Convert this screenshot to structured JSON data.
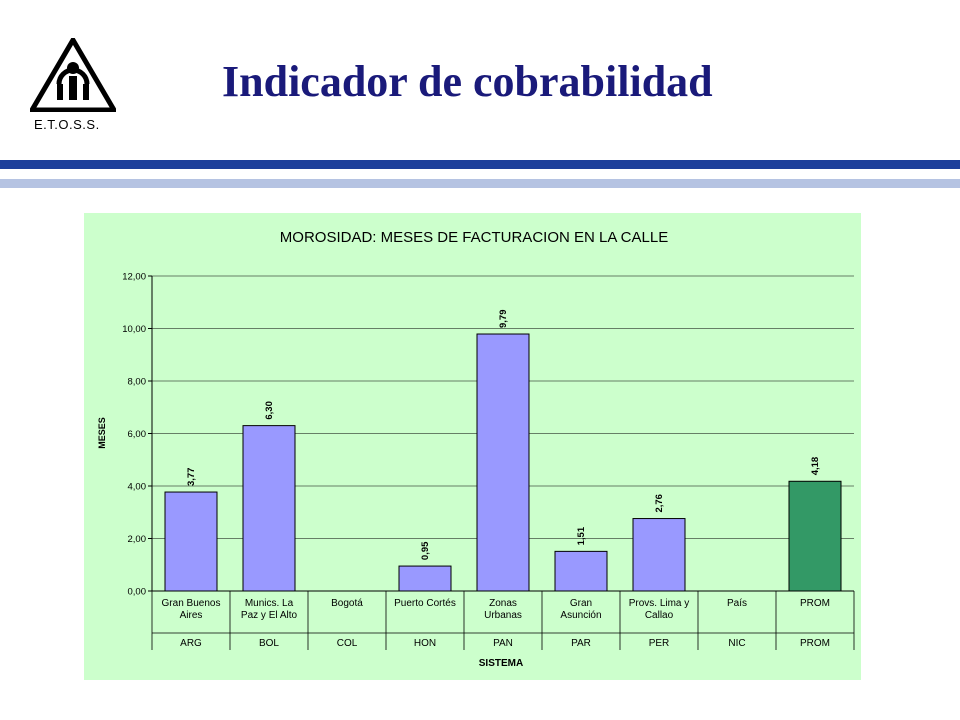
{
  "header": {
    "title": "Indicador de cobrabilidad",
    "logo_caption": "E.T.O.S.S."
  },
  "colors": {
    "title": "#1a1a7a",
    "rule_dark": "#1d3f9b",
    "rule_light": "#b5c3e2",
    "chart_bg": "#ccffcc",
    "bar": "#9999ff",
    "bar_highlight": "#339966"
  },
  "chart_data": {
    "type": "bar",
    "title": "MOROSIDAD: MESES DE FACTURACION EN LA CALLE",
    "xlabel": "SISTEMA",
    "ylabel": "MESES",
    "ylim": [
      0,
      12
    ],
    "yticks": [
      "0,00",
      "2,00",
      "4,00",
      "6,00",
      "8,00",
      "10,00",
      "12,00"
    ],
    "grid": true,
    "categories": [
      {
        "label": [
          "Gran Buenos",
          "Aires"
        ],
        "group": "ARG"
      },
      {
        "label": [
          "Munics. La",
          "Paz y El Alto"
        ],
        "group": "BOL"
      },
      {
        "label": [
          "Bogotá"
        ],
        "group": "COL"
      },
      {
        "label": [
          "Puerto Cortés"
        ],
        "group": "HON"
      },
      {
        "label": [
          "Zonas",
          "Urbanas"
        ],
        "group": "PAN"
      },
      {
        "label": [
          "Gran",
          "Asunción"
        ],
        "group": "PAR"
      },
      {
        "label": [
          "Provs. Lima y",
          "Callao"
        ],
        "group": "PER"
      },
      {
        "label": [
          "País"
        ],
        "group": "NIC"
      },
      {
        "label": [
          "PROM"
        ],
        "group": "PROM"
      }
    ],
    "values": [
      3.77,
      6.3,
      null,
      0.95,
      9.79,
      1.51,
      2.76,
      null,
      4.18
    ],
    "data_labels": [
      "3,77",
      "6,30",
      "",
      "0,95",
      "9,79",
      "1,51",
      "2,76",
      "",
      "4,18"
    ],
    "highlight_index": 8
  }
}
